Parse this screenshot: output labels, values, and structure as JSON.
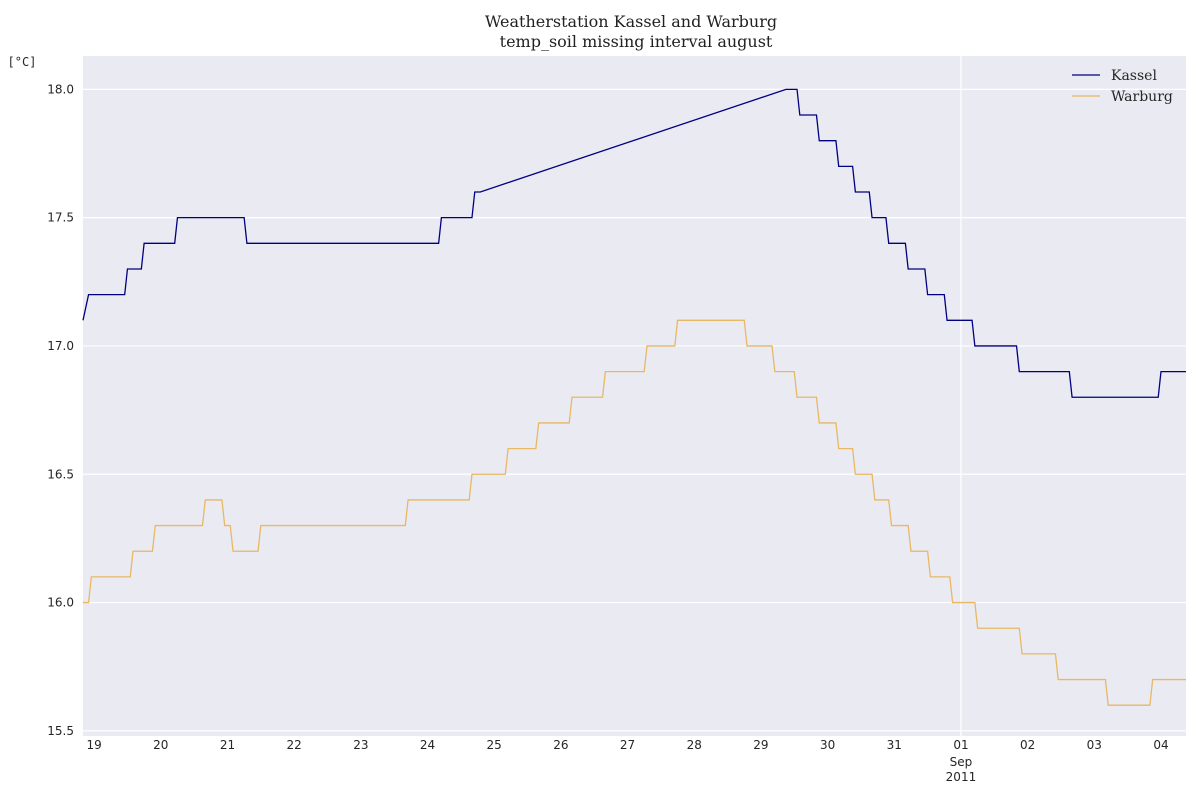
{
  "chart_data": {
    "type": "line",
    "title": "Weatherstation Kassel and Warburg",
    "subtitle": "temp_soil missing interval august",
    "ylabel": "[°C]",
    "xlabel": "",
    "xlim": [
      "2011-08-18T20:00",
      "2011-09-04T09:00"
    ],
    "ylim": [
      15.48,
      18.13
    ],
    "yticks": [
      15.5,
      16.0,
      16.5,
      17.0,
      17.5,
      18.0
    ],
    "ytick_labels": [
      "15.5",
      "16.0",
      "16.5",
      "17.0",
      "17.5",
      "18.0"
    ],
    "xticks": [
      {
        "date": "2011-08-19",
        "label": "19"
      },
      {
        "date": "2011-08-20",
        "label": "20"
      },
      {
        "date": "2011-08-21",
        "label": "21"
      },
      {
        "date": "2011-08-22",
        "label": "22"
      },
      {
        "date": "2011-08-23",
        "label": "23"
      },
      {
        "date": "2011-08-24",
        "label": "24"
      },
      {
        "date": "2011-08-25",
        "label": "25"
      },
      {
        "date": "2011-08-26",
        "label": "26"
      },
      {
        "date": "2011-08-27",
        "label": "27"
      },
      {
        "date": "2011-08-28",
        "label": "28"
      },
      {
        "date": "2011-08-29",
        "label": "29"
      },
      {
        "date": "2011-08-30",
        "label": "30"
      },
      {
        "date": "2011-08-31",
        "label": "31"
      },
      {
        "date": "2011-09-01",
        "label": "01",
        "label2": "Sep",
        "label3": "2011"
      },
      {
        "date": "2011-09-02",
        "label": "02"
      },
      {
        "date": "2011-09-03",
        "label": "03"
      },
      {
        "date": "2011-09-04",
        "label": "04"
      }
    ],
    "grid": true,
    "legend_position": "top-right",
    "series": [
      {
        "name": "Kassel",
        "color": "#000080",
        "points": [
          [
            "2011-08-18T20:00",
            17.1
          ],
          [
            "2011-08-18T22:00",
            17.2
          ],
          [
            "2011-08-19T11:00",
            17.2
          ],
          [
            "2011-08-19T12:00",
            17.3
          ],
          [
            "2011-08-19T17:00",
            17.3
          ],
          [
            "2011-08-19T18:00",
            17.4
          ],
          [
            "2011-08-20T05:00",
            17.4
          ],
          [
            "2011-08-20T06:00",
            17.5
          ],
          [
            "2011-08-21T06:00",
            17.5
          ],
          [
            "2011-08-21T07:00",
            17.4
          ],
          [
            "2011-08-24T04:00",
            17.4
          ],
          [
            "2011-08-24T05:00",
            17.5
          ],
          [
            "2011-08-24T16:00",
            17.5
          ],
          [
            "2011-08-24T17:00",
            17.6
          ],
          [
            "2011-08-24T19:00",
            17.6
          ],
          [
            "2011-08-29T09:00",
            18.0
          ],
          [
            "2011-08-29T13:00",
            18.0
          ],
          [
            "2011-08-29T14:00",
            17.9
          ],
          [
            "2011-08-29T20:00",
            17.9
          ],
          [
            "2011-08-29T21:00",
            17.8
          ],
          [
            "2011-08-30T03:00",
            17.8
          ],
          [
            "2011-08-30T04:00",
            17.7
          ],
          [
            "2011-08-30T09:00",
            17.7
          ],
          [
            "2011-08-30T10:00",
            17.6
          ],
          [
            "2011-08-30T15:00",
            17.6
          ],
          [
            "2011-08-30T16:00",
            17.5
          ],
          [
            "2011-08-30T21:00",
            17.5
          ],
          [
            "2011-08-30T22:00",
            17.4
          ],
          [
            "2011-08-31T04:00",
            17.4
          ],
          [
            "2011-08-31T05:00",
            17.3
          ],
          [
            "2011-08-31T11:00",
            17.3
          ],
          [
            "2011-08-31T12:00",
            17.2
          ],
          [
            "2011-08-31T18:00",
            17.2
          ],
          [
            "2011-08-31T19:00",
            17.1
          ],
          [
            "2011-09-01T04:00",
            17.1
          ],
          [
            "2011-09-01T05:00",
            17.0
          ],
          [
            "2011-09-01T20:00",
            17.0
          ],
          [
            "2011-09-01T21:00",
            16.9
          ],
          [
            "2011-09-02T15:00",
            16.9
          ],
          [
            "2011-09-02T16:00",
            16.8
          ],
          [
            "2011-09-03T23:00",
            16.8
          ],
          [
            "2011-09-04T00:00",
            16.9
          ],
          [
            "2011-09-04T09:00",
            16.9
          ]
        ]
      },
      {
        "name": "Warburg",
        "color": "#e8b864",
        "points": [
          [
            "2011-08-18T20:00",
            16.0
          ],
          [
            "2011-08-18T22:00",
            16.0
          ],
          [
            "2011-08-18T23:00",
            16.1
          ],
          [
            "2011-08-19T13:00",
            16.1
          ],
          [
            "2011-08-19T14:00",
            16.2
          ],
          [
            "2011-08-19T21:00",
            16.2
          ],
          [
            "2011-08-19T22:00",
            16.3
          ],
          [
            "2011-08-20T15:00",
            16.3
          ],
          [
            "2011-08-20T16:00",
            16.4
          ],
          [
            "2011-08-20T22:00",
            16.4
          ],
          [
            "2011-08-20T23:00",
            16.3
          ],
          [
            "2011-08-21T01:00",
            16.3
          ],
          [
            "2011-08-21T02:00",
            16.2
          ],
          [
            "2011-08-21T11:00",
            16.2
          ],
          [
            "2011-08-21T12:00",
            16.3
          ],
          [
            "2011-08-23T16:00",
            16.3
          ],
          [
            "2011-08-23T17:00",
            16.4
          ],
          [
            "2011-08-24T15:00",
            16.4
          ],
          [
            "2011-08-24T16:00",
            16.5
          ],
          [
            "2011-08-25T04:00",
            16.5
          ],
          [
            "2011-08-25T05:00",
            16.6
          ],
          [
            "2011-08-25T15:00",
            16.6
          ],
          [
            "2011-08-25T16:00",
            16.7
          ],
          [
            "2011-08-26T03:00",
            16.7
          ],
          [
            "2011-08-26T04:00",
            16.8
          ],
          [
            "2011-08-26T15:00",
            16.8
          ],
          [
            "2011-08-26T16:00",
            16.9
          ],
          [
            "2011-08-27T06:00",
            16.9
          ],
          [
            "2011-08-27T07:00",
            17.0
          ],
          [
            "2011-08-27T17:00",
            17.0
          ],
          [
            "2011-08-27T18:00",
            17.1
          ],
          [
            "2011-08-28T18:00",
            17.1
          ],
          [
            "2011-08-28T19:00",
            17.0
          ],
          [
            "2011-08-29T04:00",
            17.0
          ],
          [
            "2011-08-29T05:00",
            16.9
          ],
          [
            "2011-08-29T12:00",
            16.9
          ],
          [
            "2011-08-29T13:00",
            16.8
          ],
          [
            "2011-08-29T20:00",
            16.8
          ],
          [
            "2011-08-29T21:00",
            16.7
          ],
          [
            "2011-08-30T03:00",
            16.7
          ],
          [
            "2011-08-30T04:00",
            16.6
          ],
          [
            "2011-08-30T09:00",
            16.6
          ],
          [
            "2011-08-30T10:00",
            16.5
          ],
          [
            "2011-08-30T16:00",
            16.5
          ],
          [
            "2011-08-30T17:00",
            16.4
          ],
          [
            "2011-08-30T22:00",
            16.4
          ],
          [
            "2011-08-30T23:00",
            16.3
          ],
          [
            "2011-08-31T05:00",
            16.3
          ],
          [
            "2011-08-31T06:00",
            16.2
          ],
          [
            "2011-08-31T12:00",
            16.2
          ],
          [
            "2011-08-31T13:00",
            16.1
          ],
          [
            "2011-08-31T20:00",
            16.1
          ],
          [
            "2011-08-31T21:00",
            16.0
          ],
          [
            "2011-09-01T05:00",
            16.0
          ],
          [
            "2011-09-01T06:00",
            15.9
          ],
          [
            "2011-09-01T21:00",
            15.9
          ],
          [
            "2011-09-01T22:00",
            15.8
          ],
          [
            "2011-09-02T10:00",
            15.8
          ],
          [
            "2011-09-02T11:00",
            15.7
          ],
          [
            "2011-09-03T04:00",
            15.7
          ],
          [
            "2011-09-03T05:00",
            15.6
          ],
          [
            "2011-09-03T20:00",
            15.6
          ],
          [
            "2011-09-03T21:00",
            15.7
          ],
          [
            "2011-09-04T09:00",
            15.7
          ]
        ]
      }
    ]
  }
}
